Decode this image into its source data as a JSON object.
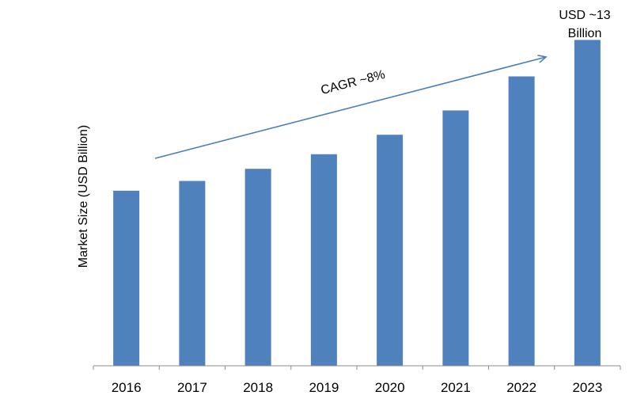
{
  "chart_data": {
    "type": "bar",
    "categories": [
      "2016",
      "2017",
      "2018",
      "2019",
      "2020",
      "2021",
      "2022",
      "2023"
    ],
    "values": [
      7.2,
      7.6,
      8.1,
      8.7,
      9.5,
      10.5,
      11.9,
      13.4
    ],
    "ylabel": "Market Size (USD Billion)",
    "xlabel": "",
    "ylim": [
      0,
      14
    ],
    "grid": false,
    "bar_color": "#4f81bd",
    "arrow_color": "#4a7ebb",
    "annotations": {
      "cagr": "CAGR ~8%",
      "last_value_line1": "USD ~13",
      "last_value_line2": "Billion"
    }
  }
}
